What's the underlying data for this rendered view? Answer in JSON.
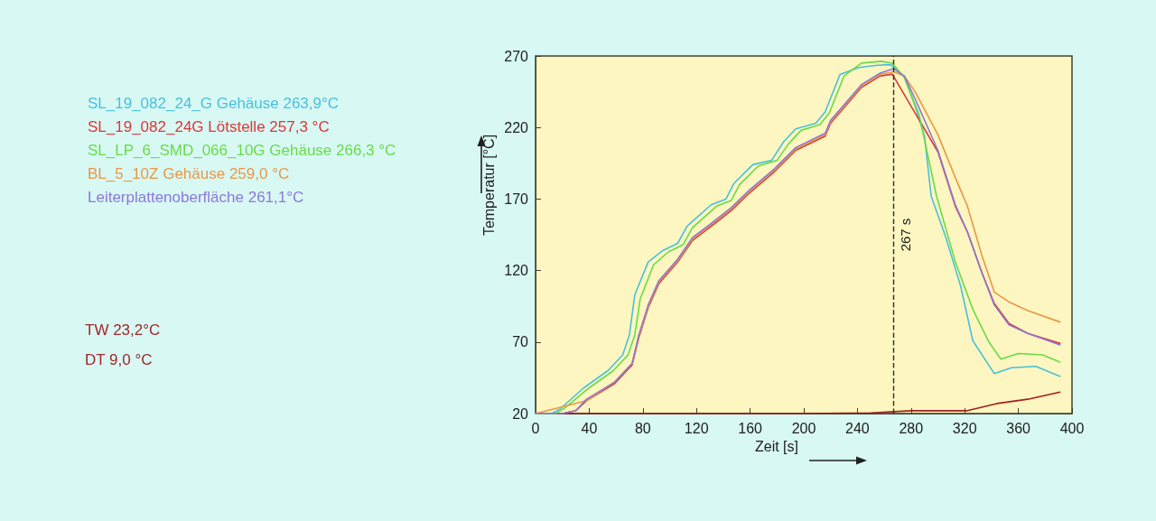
{
  "chart_data": {
    "type": "line",
    "xlabel": "Zeit [s]",
    "ylabel": "Temperatur [°C]",
    "xlim": [
      0,
      400
    ],
    "xticks": [
      0,
      40,
      80,
      120,
      160,
      200,
      240,
      280,
      320,
      360,
      400
    ],
    "ylim": [
      20,
      270
    ],
    "yticks": [
      20,
      70,
      120,
      170,
      220,
      270
    ],
    "grid": false,
    "legend": "left",
    "line_style": "solid",
    "marker": "none",
    "ref_lines": [
      {
        "axis": "x",
        "value": 267,
        "label": "267 s",
        "line_style": "dashed",
        "color": "#303020"
      }
    ],
    "annotations": [
      "TW 23,2°C",
      "DT 9,0 °C"
    ],
    "series": [
      {
        "name": "SL_19_082_24_G Gehäuse 263,9°C",
        "color": "#48c0dc",
        "x": [
          0,
          12,
          18,
          36,
          54,
          65,
          70,
          74,
          84,
          95,
          106,
          113,
          131,
          142,
          148,
          162,
          176,
          185,
          194,
          209,
          216,
          227,
          241,
          255,
          265,
          275,
          283,
          290,
          295,
          306,
          317,
          326,
          342,
          355,
          373,
          391
        ],
        "values": [
          20,
          20,
          23,
          38,
          50,
          61,
          75,
          103,
          126,
          134,
          139,
          151,
          166,
          170,
          181,
          194,
          197,
          210,
          219,
          223,
          231,
          257,
          262,
          263.5,
          263.9,
          255,
          235,
          214,
          172,
          143,
          109,
          71,
          48,
          52,
          53,
          46
        ]
      },
      {
        "name": "SL_19_082_24G Lötstelle 257,3 °C",
        "color": "#d83838",
        "x": [
          0,
          20,
          30,
          38,
          59,
          72,
          77,
          84,
          92,
          106,
          117,
          131,
          146,
          158,
          178,
          194,
          216,
          220,
          243,
          257,
          266,
          300,
          313,
          322,
          333,
          342,
          353,
          367,
          391
        ],
        "values": [
          20,
          20,
          22,
          29,
          41,
          54,
          73,
          94,
          111,
          126,
          141,
          151,
          162,
          173,
          189,
          204,
          214,
          223,
          248,
          256,
          257.3,
          203,
          165,
          147,
          118,
          97,
          83,
          76,
          69
        ]
      },
      {
        "name": "SL_LP_6_SMD_066_10G Gehäuse 266,3 °C",
        "color": "#68dc48",
        "x": [
          0,
          15,
          22,
          40,
          58,
          69,
          74,
          78,
          88,
          99,
          110,
          117,
          135,
          146,
          152,
          166,
          180,
          189,
          198,
          212,
          219,
          230,
          243,
          258,
          266,
          275,
          286,
          299,
          313,
          326,
          338,
          347,
          360,
          378,
          391
        ],
        "values": [
          20,
          20,
          24,
          38,
          50,
          61,
          75,
          100,
          124,
          133,
          138,
          150,
          165,
          169,
          180,
          193,
          197,
          209,
          218,
          222,
          230,
          256,
          265,
          266.3,
          265,
          255,
          229,
          172,
          126,
          93,
          70,
          58,
          62,
          61,
          56
        ]
      },
      {
        "name": "BL_5_10Z Gehäuse 259,0 °C",
        "color": "#e89848",
        "x": [
          0,
          38,
          59,
          72,
          77,
          84,
          92,
          106,
          117,
          131,
          146,
          158,
          178,
          194,
          216,
          220,
          243,
          257,
          267,
          275,
          283,
          300,
          313,
          322,
          333,
          342,
          353,
          367,
          391
        ],
        "values": [
          20,
          29,
          42,
          55,
          74,
          95,
          112,
          127,
          142,
          152,
          163,
          174,
          190,
          205,
          215,
          224,
          249,
          257,
          259,
          256,
          245,
          215,
          185,
          165,
          130,
          105,
          98,
          92,
          84
        ]
      },
      {
        "name": "Leiterplattenoberfläche 261,1°C",
        "color": "#8c78d8",
        "x": [
          0,
          20,
          30,
          38,
          59,
          72,
          77,
          84,
          92,
          106,
          117,
          131,
          146,
          158,
          178,
          194,
          216,
          220,
          243,
          257,
          267,
          275,
          283,
          300,
          313,
          322,
          333,
          342,
          353,
          367,
          391
        ],
        "values": [
          20,
          20,
          22,
          30,
          42,
          55,
          75,
          96,
          113,
          128,
          143,
          153,
          164,
          175,
          191,
          206,
          216,
          225,
          250,
          258,
          261.1,
          256,
          240,
          204,
          166,
          147,
          118,
          96,
          82,
          76,
          68
        ]
      },
      {
        "color": "#a02020",
        "x": [
          0,
          100,
          200,
          250,
          280,
          322,
          344,
          367,
          391
        ],
        "values": [
          20,
          20,
          20,
          20.5,
          22,
          22,
          27,
          30,
          35
        ]
      }
    ]
  }
}
